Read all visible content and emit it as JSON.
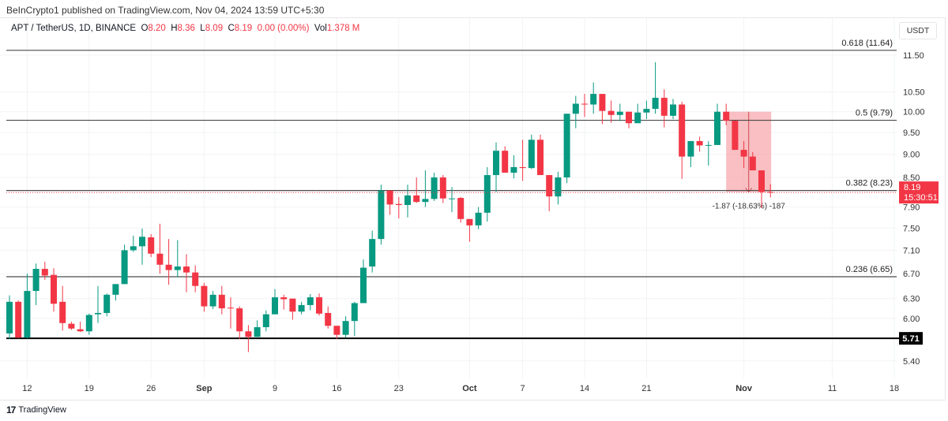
{
  "header": {
    "published": "BeInCrypto1 published on TradingView.com, Nov 04, 2024 13:59 UTC+5:30",
    "symbol": "APT / TetherUS, 1D, BINANCE",
    "o_label": "O",
    "o": "8.20",
    "h_label": "H",
    "h": "8.36",
    "l_label": "L",
    "l": "8.09",
    "c_label": "C",
    "c": "8.19",
    "change": "0.00 (0.00%)",
    "vol_label": "Vol",
    "vol": "1.378 M",
    "currency": "USDT"
  },
  "footer": {
    "brand": "TradingView"
  },
  "colors": {
    "up": "#089981",
    "down": "#F23645",
    "position_fill": "#f7a9ae",
    "last_price_bg": "#F23645",
    "support_bg": "#000000"
  },
  "chart_data": {
    "type": "candlestick",
    "y_scale": "log",
    "ylim": [
      5.2,
      11.8
    ],
    "y_ticks": [
      "11.50",
      "10.50",
      "10.00",
      "9.50",
      "9.00",
      "8.50",
      "7.90",
      "7.50",
      "7.10",
      "6.70",
      "6.30",
      "6.00",
      "5.40"
    ],
    "x_ticks": [
      {
        "date": "2024-08-12",
        "label": "12"
      },
      {
        "date": "2024-08-19",
        "label": "19"
      },
      {
        "date": "2024-08-26",
        "label": "26"
      },
      {
        "date": "2024-09-01",
        "label": "Sep"
      },
      {
        "date": "2024-09-09",
        "label": "9"
      },
      {
        "date": "2024-09-16",
        "label": "16"
      },
      {
        "date": "2024-09-23",
        "label": "23"
      },
      {
        "date": "2024-10-01",
        "label": "Oct"
      },
      {
        "date": "2024-10-07",
        "label": "7"
      },
      {
        "date": "2024-10-14",
        "label": "14"
      },
      {
        "date": "2024-10-21",
        "label": "21"
      },
      {
        "date": "2024-11-01",
        "label": "Nov"
      },
      {
        "date": "2024-11-11",
        "label": "11"
      },
      {
        "date": "2024-11-18",
        "label": "18"
      }
    ],
    "xlim": [
      "2024-08-09",
      "2024-11-18"
    ],
    "grid": true,
    "fib_levels": [
      {
        "price": 11.64,
        "label": "0.618 (11.64)"
      },
      {
        "price": 9.79,
        "label": "0.5 (9.79)"
      },
      {
        "price": 8.23,
        "label": "0.382 (8.23)"
      },
      {
        "price": 6.65,
        "label": "0.236 (6.65)"
      }
    ],
    "support": {
      "price": 5.71,
      "label": "5.71"
    },
    "last_price": {
      "price": 8.19,
      "label": "8.19",
      "countdown": "15:30:51"
    },
    "position": {
      "start": "2024-10-30",
      "end": "2024-11-04",
      "top": 10.0,
      "bottom": 8.2,
      "label": "-1.87 (-18.63%) -187"
    },
    "columns": [
      "date",
      "open",
      "high",
      "low",
      "close"
    ],
    "candles": [
      [
        "2024-08-10",
        5.78,
        6.35,
        5.7,
        6.25
      ],
      [
        "2024-08-11",
        6.25,
        6.27,
        5.71,
        5.72
      ],
      [
        "2024-08-12",
        5.72,
        6.7,
        5.71,
        6.42
      ],
      [
        "2024-08-13",
        6.42,
        6.87,
        6.2,
        6.78
      ],
      [
        "2024-08-14",
        6.78,
        6.9,
        6.6,
        6.67
      ],
      [
        "2024-08-15",
        6.68,
        6.79,
        6.1,
        6.22
      ],
      [
        "2024-08-16",
        6.25,
        6.5,
        5.82,
        5.93
      ],
      [
        "2024-08-17",
        5.92,
        5.95,
        5.83,
        5.85
      ],
      [
        "2024-08-18",
        5.84,
        5.95,
        5.8,
        5.81
      ],
      [
        "2024-08-19",
        5.81,
        6.07,
        5.76,
        6.05
      ],
      [
        "2024-08-20",
        6.06,
        6.5,
        5.93,
        6.08
      ],
      [
        "2024-08-21",
        6.08,
        6.38,
        6.03,
        6.36
      ],
      [
        "2024-08-22",
        6.36,
        6.53,
        6.27,
        6.53
      ],
      [
        "2024-08-23",
        6.53,
        7.2,
        6.53,
        7.1
      ],
      [
        "2024-08-24",
        7.1,
        7.36,
        7.07,
        7.17
      ],
      [
        "2024-08-25",
        7.17,
        7.49,
        6.85,
        7.34
      ],
      [
        "2024-08-26",
        7.33,
        7.39,
        6.98,
        7.04
      ],
      [
        "2024-08-27",
        7.04,
        7.58,
        6.7,
        6.85
      ],
      [
        "2024-08-28",
        6.85,
        7.3,
        6.52,
        6.76
      ],
      [
        "2024-08-29",
        6.76,
        7.28,
        6.64,
        6.82
      ],
      [
        "2024-08-30",
        6.82,
        7.03,
        6.4,
        6.72
      ],
      [
        "2024-08-31",
        6.72,
        6.84,
        6.4,
        6.5
      ],
      [
        "2024-09-01",
        6.5,
        6.55,
        6.1,
        6.18
      ],
      [
        "2024-09-02",
        6.18,
        6.42,
        6.14,
        6.36
      ],
      [
        "2024-09-03",
        6.36,
        6.5,
        6.06,
        6.15
      ],
      [
        "2024-09-04",
        6.16,
        6.32,
        5.85,
        6.15
      ],
      [
        "2024-09-05",
        6.15,
        6.18,
        5.7,
        5.81
      ],
      [
        "2024-09-06",
        5.81,
        5.9,
        5.52,
        5.73
      ],
      [
        "2024-09-07",
        5.73,
        5.97,
        5.73,
        5.87
      ],
      [
        "2024-09-08",
        5.87,
        6.12,
        5.81,
        6.06
      ],
      [
        "2024-09-09",
        6.06,
        6.45,
        6.06,
        6.32
      ],
      [
        "2024-09-10",
        6.32,
        6.36,
        6.13,
        6.29
      ],
      [
        "2024-09-11",
        6.3,
        6.3,
        5.98,
        6.1
      ],
      [
        "2024-09-12",
        6.1,
        6.25,
        6.06,
        6.2
      ],
      [
        "2024-09-13",
        6.2,
        6.37,
        6.12,
        6.32
      ],
      [
        "2024-09-14",
        6.32,
        6.38,
        6.04,
        6.07
      ],
      [
        "2024-09-15",
        6.08,
        6.18,
        5.85,
        5.89
      ],
      [
        "2024-09-16",
        5.89,
        5.89,
        5.7,
        5.76
      ],
      [
        "2024-09-17",
        5.76,
        6.03,
        5.72,
        5.96
      ],
      [
        "2024-09-18",
        5.96,
        6.25,
        5.74,
        6.23
      ],
      [
        "2024-09-19",
        6.23,
        6.94,
        6.23,
        6.8
      ],
      [
        "2024-09-20",
        6.82,
        7.45,
        6.72,
        7.3
      ],
      [
        "2024-09-21",
        7.3,
        8.35,
        7.2,
        8.23
      ],
      [
        "2024-09-22",
        8.23,
        8.23,
        7.75,
        7.95
      ],
      [
        "2024-09-23",
        7.96,
        8.1,
        7.68,
        7.94
      ],
      [
        "2024-09-24",
        7.94,
        8.35,
        7.7,
        8.13
      ],
      [
        "2024-09-25",
        8.13,
        8.5,
        7.98,
        8.0
      ],
      [
        "2024-09-26",
        8.0,
        8.65,
        7.9,
        8.06
      ],
      [
        "2024-09-27",
        8.06,
        8.6,
        8.02,
        8.5
      ],
      [
        "2024-09-28",
        8.5,
        8.55,
        7.98,
        8.07
      ],
      [
        "2024-09-29",
        8.06,
        8.3,
        7.8,
        8.07
      ],
      [
        "2024-09-30",
        8.08,
        8.1,
        7.6,
        7.67
      ],
      [
        "2024-10-01",
        7.67,
        7.67,
        7.25,
        7.55
      ],
      [
        "2024-10-02",
        7.55,
        7.9,
        7.48,
        7.79
      ],
      [
        "2024-10-03",
        7.79,
        8.72,
        7.62,
        8.55
      ],
      [
        "2024-10-04",
        8.55,
        9.27,
        8.2,
        9.08
      ],
      [
        "2024-10-05",
        9.08,
        9.18,
        8.6,
        8.6
      ],
      [
        "2024-10-06",
        8.6,
        8.98,
        8.48,
        8.72
      ],
      [
        "2024-10-07",
        8.72,
        9.33,
        8.43,
        8.7
      ],
      [
        "2024-10-08",
        8.7,
        9.45,
        8.68,
        9.33
      ],
      [
        "2024-10-09",
        9.33,
        9.45,
        8.55,
        8.55
      ],
      [
        "2024-10-10",
        8.55,
        8.55,
        7.82,
        8.11
      ],
      [
        "2024-10-11",
        8.11,
        8.62,
        7.95,
        8.5
      ],
      [
        "2024-10-12",
        8.5,
        9.95,
        8.38,
        9.95
      ],
      [
        "2024-10-13",
        9.95,
        10.4,
        9.6,
        10.2
      ],
      [
        "2024-10-14",
        10.2,
        10.45,
        9.87,
        10.18
      ],
      [
        "2024-10-15",
        10.18,
        10.75,
        9.95,
        10.45
      ],
      [
        "2024-10-16",
        10.45,
        10.45,
        9.7,
        10.02
      ],
      [
        "2024-10-17",
        10.02,
        10.28,
        9.73,
        9.92
      ],
      [
        "2024-10-18",
        9.92,
        10.2,
        9.77,
        10.0
      ],
      [
        "2024-10-19",
        10.0,
        10.0,
        9.6,
        9.72
      ],
      [
        "2024-10-20",
        9.72,
        10.2,
        9.72,
        9.98
      ],
      [
        "2024-10-21",
        9.98,
        10.28,
        9.82,
        10.07
      ],
      [
        "2024-10-22",
        10.07,
        11.3,
        9.95,
        10.35
      ],
      [
        "2024-10-23",
        10.35,
        10.57,
        9.62,
        9.9
      ],
      [
        "2024-10-24",
        9.9,
        10.32,
        9.82,
        10.18
      ],
      [
        "2024-10-25",
        10.18,
        10.25,
        8.47,
        8.95
      ],
      [
        "2024-10-26",
        8.95,
        9.3,
        8.72,
        9.3
      ],
      [
        "2024-10-27",
        9.3,
        9.4,
        9.06,
        9.2
      ],
      [
        "2024-10-28",
        9.2,
        9.3,
        8.75,
        9.21
      ],
      [
        "2024-10-29",
        9.21,
        10.2,
        9.21,
        10.0
      ],
      [
        "2024-10-30",
        10.0,
        10.2,
        9.67,
        9.78
      ],
      [
        "2024-10-31",
        9.78,
        9.78,
        9.1,
        9.1
      ],
      [
        "2024-11-01",
        9.1,
        9.3,
        8.7,
        8.95
      ],
      [
        "2024-11-02",
        8.95,
        9.05,
        8.65,
        8.65
      ],
      [
        "2024-11-03",
        8.65,
        8.65,
        7.88,
        8.2
      ],
      [
        "2024-11-04",
        8.2,
        8.36,
        8.09,
        8.19
      ]
    ]
  }
}
